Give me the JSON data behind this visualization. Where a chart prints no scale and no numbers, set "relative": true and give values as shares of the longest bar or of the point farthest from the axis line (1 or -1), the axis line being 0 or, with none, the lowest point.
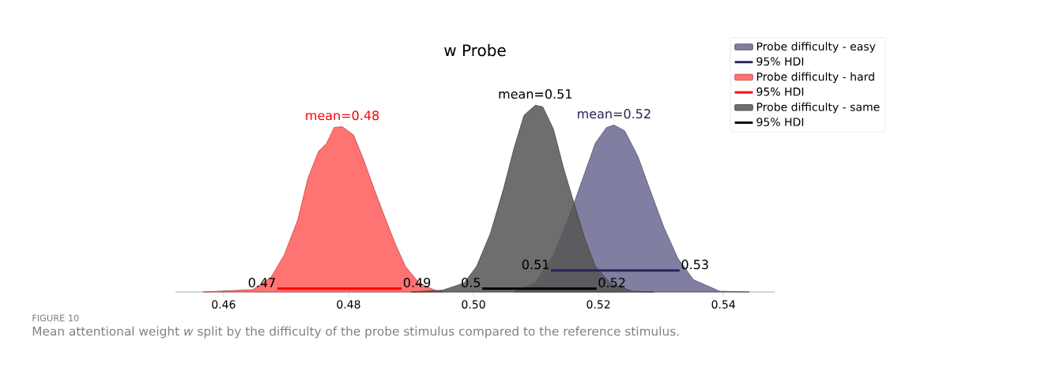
{
  "chart_data": {
    "type": "area",
    "title": "w Probe",
    "relative": true,
    "legend": "top right",
    "xlim": [
      0.4523,
      0.5482
    ],
    "xticks": [
      0.46,
      0.48,
      {
        "value": 0.5,
        "label": "0.50"
      },
      0.52,
      0.54
    ],
    "series": [
      {
        "name": "Probe difficulty - easy",
        "color": "#6a6890",
        "x": [
          0.5065,
          0.5099,
          0.5128,
          0.5153,
          0.5175,
          0.5195,
          0.5213,
          0.5225,
          0.5242,
          0.5263,
          0.5284,
          0.5305,
          0.5327,
          0.5352,
          0.5394,
          0.5441
        ],
        "values": [
          0,
          0.048,
          0.198,
          0.401,
          0.608,
          0.797,
          0.881,
          0.894,
          0.863,
          0.727,
          0.533,
          0.344,
          0.181,
          0.066,
          0.004,
          0
        ]
      },
      {
        "name": "95% HDI",
        "type": "line",
        "color": "#2a2459",
        "x": [
          0.5124,
          0.533
        ],
        "values": [
          0.115,
          0.115
        ]
      },
      {
        "name": "Probe difficulty - hard",
        "color": "#ff5a5a",
        "x": [
          0.4567,
          0.4647,
          0.4676,
          0.4697,
          0.4719,
          0.4735,
          0.4752,
          0.4765,
          0.4777,
          0.479,
          0.4808,
          0.4824,
          0.4841,
          0.4858,
          0.4875,
          0.4891,
          0.4913,
          0.4942,
          0.4951
        ],
        "values": [
          0,
          0.013,
          0.079,
          0.198,
          0.388,
          0.608,
          0.753,
          0.797,
          0.881,
          0.885,
          0.841,
          0.709,
          0.551,
          0.401,
          0.256,
          0.137,
          0.048,
          0.004,
          0
        ]
      },
      {
        "name": "95% HDI",
        "type": "line",
        "color": "#ff0000",
        "x": [
          0.4686,
          0.4885
        ],
        "values": [
          0.018,
          0.018
        ]
      },
      {
        "name": "Probe difficulty - same",
        "color": "#555555",
        "x": [
          0.49,
          0.4951,
          0.4985,
          0.5005,
          0.5027,
          0.5048,
          0.5065,
          0.5081,
          0.5099,
          0.5111,
          0.5128,
          0.5144,
          0.5162,
          0.5178,
          0.5195,
          0.522,
          0.5254,
          0.5289
        ],
        "values": [
          0,
          0.01,
          0.048,
          0.137,
          0.313,
          0.551,
          0.771,
          0.947,
          1.0,
          0.991,
          0.872,
          0.665,
          0.463,
          0.287,
          0.137,
          0.044,
          0.004,
          0
        ]
      },
      {
        "name": "95% HDI",
        "type": "line",
        "color": "#000000",
        "x": [
          0.5014,
          0.5197
        ],
        "values": [
          0.018,
          0.018
        ]
      }
    ],
    "annotations": [
      {
        "text": "mean=0.48",
        "x": 0.479,
        "y": 0.885
      },
      {
        "text": "mean=0.51",
        "x": 0.5099,
        "y": 1.0
      },
      {
        "text": "mean=0.52",
        "x": 0.5225,
        "y": 0.894
      },
      {
        "text": "0.47",
        "x": 0.4686,
        "y": 0.018
      },
      {
        "text": "0.49",
        "x": 0.4885,
        "y": 0.018
      },
      {
        "text": "0.5",
        "x": 0.5014,
        "y": 0.018
      },
      {
        "text": "0.51",
        "x": 0.5124,
        "y": 0.115
      },
      {
        "text": "0.53",
        "x": 0.533,
        "y": 0.115
      },
      {
        "text": "0.52",
        "x": 0.5197,
        "y": 0.018
      },
      "FIGURE 10",
      "Mean attentional weight *w* split by the difficulty of the probe stimulus compared to the reference stimulus."
    ]
  }
}
